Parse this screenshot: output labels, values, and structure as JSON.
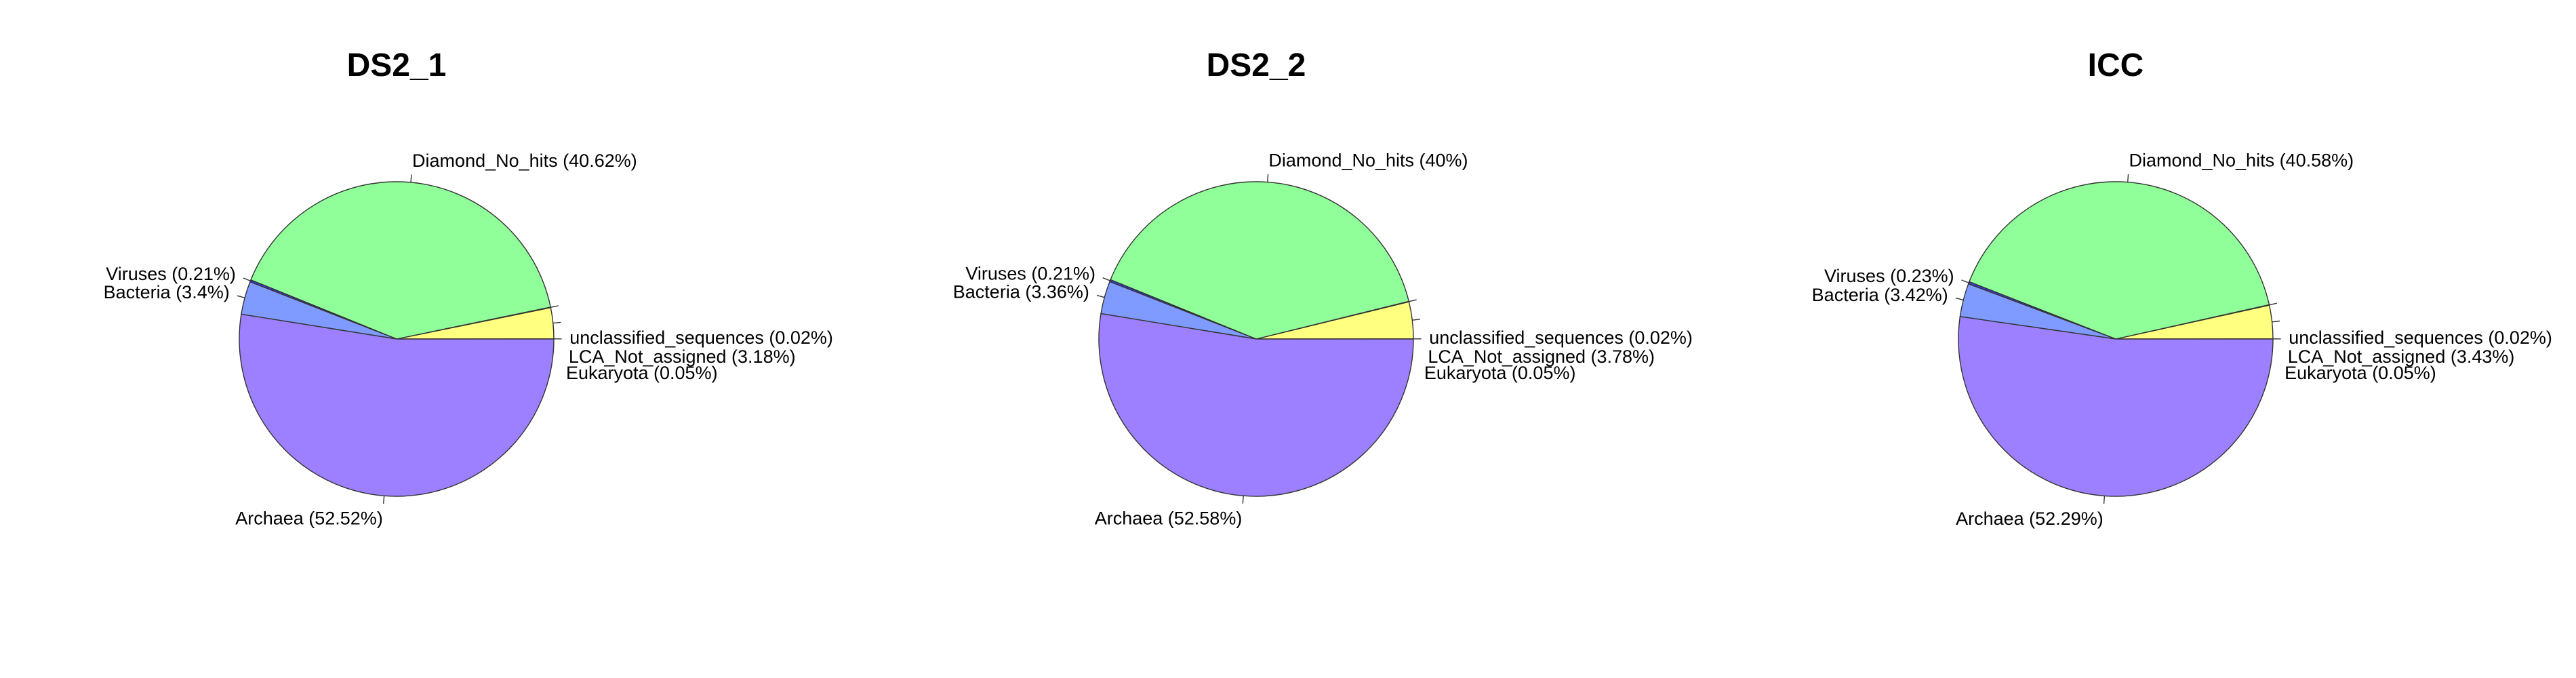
{
  "chart_data": [
    {
      "type": "pie",
      "title": "DS2_1",
      "slices": [
        {
          "label": "unclassified_sequences (0.02%)",
          "value": 0.02,
          "color": "#ffff80"
        },
        {
          "label": "LCA_Not_assigned (3.18%)",
          "value": 3.18,
          "color": "#ffff80"
        },
        {
          "label": "Eukaryota (0.05%)",
          "value": 0.05,
          "color": "#ffff80"
        },
        {
          "label": "Diamond_No_hits  (40.62%)",
          "value": 40.62,
          "color": "#90ff9a"
        },
        {
          "label": "Viruses (0.21%)",
          "value": 0.21,
          "color": "#3a3adf"
        },
        {
          "label": "Bacteria (3.4%)",
          "value": 3.4,
          "color": "#7f9bff"
        },
        {
          "label": "Archaea (52.52%)",
          "value": 52.52,
          "color": "#9d80ff"
        }
      ]
    },
    {
      "type": "pie",
      "title": "DS2_2",
      "slices": [
        {
          "label": "unclassified_sequences (0.02%)",
          "value": 0.02,
          "color": "#ffff80"
        },
        {
          "label": "LCA_Not_assigned (3.78%)",
          "value": 3.78,
          "color": "#ffff80"
        },
        {
          "label": "Eukaryota (0.05%)",
          "value": 0.05,
          "color": "#ffff80"
        },
        {
          "label": "Diamond_No_hits  (40%)",
          "value": 40.0,
          "color": "#90ff9a"
        },
        {
          "label": "Viruses (0.21%)",
          "value": 0.21,
          "color": "#3a3adf"
        },
        {
          "label": "Bacteria (3.36%)",
          "value": 3.36,
          "color": "#7f9bff"
        },
        {
          "label": "Archaea (52.58%)",
          "value": 52.58,
          "color": "#9d80ff"
        }
      ]
    },
    {
      "type": "pie",
      "title": "ICC",
      "slices": [
        {
          "label": "unclassified_sequences (0.02%)",
          "value": 0.02,
          "color": "#ffff80"
        },
        {
          "label": "LCA_Not_assigned (3.43%)",
          "value": 3.43,
          "color": "#ffff80"
        },
        {
          "label": "Eukaryota (0.05%)",
          "value": 0.05,
          "color": "#ffff80"
        },
        {
          "label": "Diamond_No_hits  (40.58%)",
          "value": 40.58,
          "color": "#90ff9a"
        },
        {
          "label": "Viruses (0.23%)",
          "value": 0.23,
          "color": "#3a3adf"
        },
        {
          "label": "Bacteria (3.42%)",
          "value": 3.42,
          "color": "#7f9bff"
        },
        {
          "label": "Archaea (52.29%)",
          "value": 52.29,
          "color": "#9d80ff"
        }
      ]
    }
  ]
}
